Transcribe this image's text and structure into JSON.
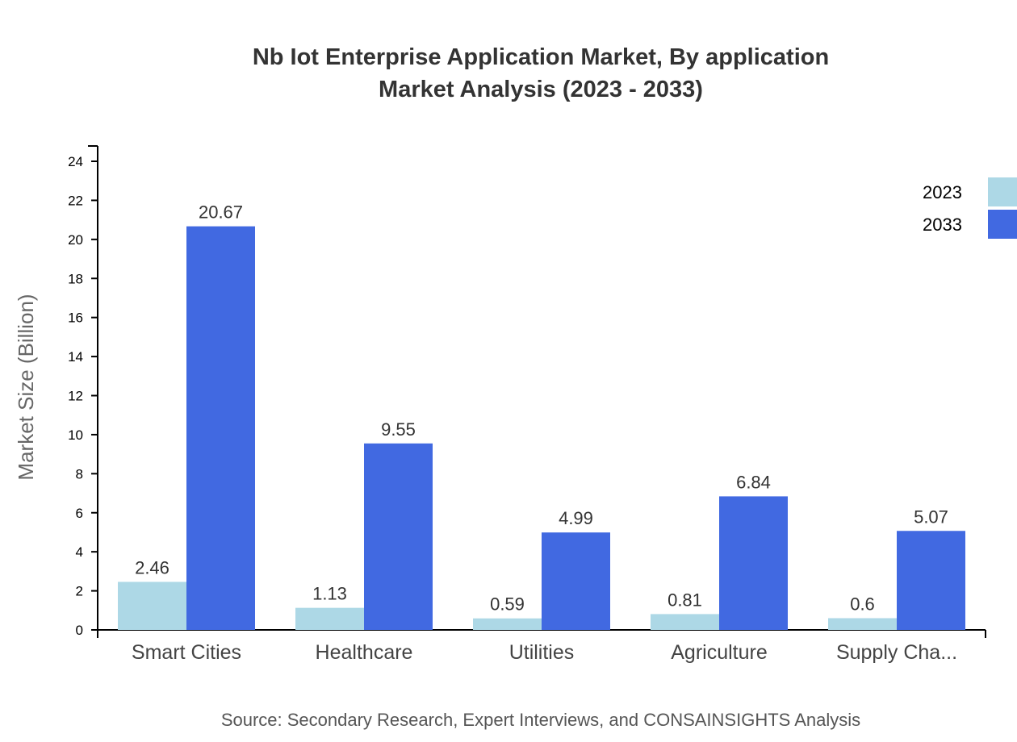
{
  "chart_data": {
    "type": "bar",
    "title": "Nb Iot Enterprise Application Market, By application",
    "subtitle": "Market Analysis (2023 - 2033)",
    "xlabel": "",
    "ylabel": "Market Size (Billion)",
    "ylim": [
      0,
      24
    ],
    "yticks": [
      0,
      2,
      4,
      6,
      8,
      10,
      12,
      14,
      16,
      18,
      20,
      22,
      24
    ],
    "categories": [
      "Smart Cities",
      "Healthcare",
      "Utilities",
      "Agriculture",
      "Supply Cha..."
    ],
    "series": [
      {
        "name": "2023",
        "color": "#add8e6",
        "values": [
          2.46,
          1.13,
          0.59,
          0.81,
          0.6
        ]
      },
      {
        "name": "2033",
        "color": "#4169e1",
        "values": [
          20.67,
          9.55,
          4.99,
          6.84,
          5.07
        ]
      }
    ],
    "legend_position": "top-right",
    "grid": false,
    "source": "Source: Secondary Research, Expert Interviews, and CONSAINSIGHTS Analysis"
  }
}
